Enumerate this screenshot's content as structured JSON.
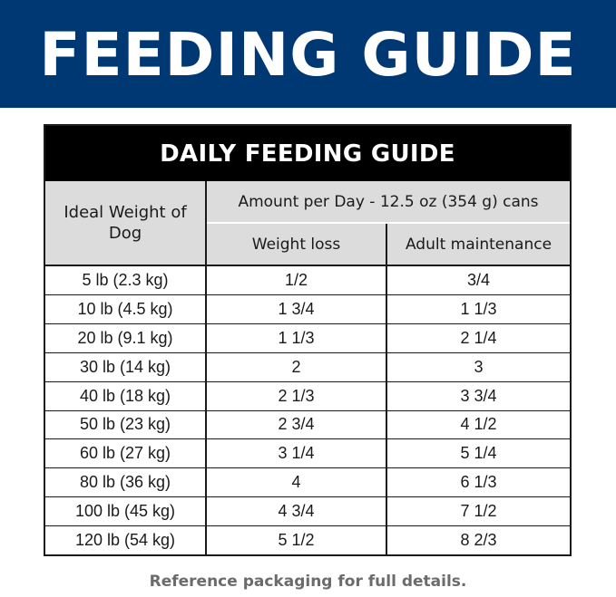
{
  "banner": {
    "title": "FEEDING GUIDE"
  },
  "table": {
    "title": "DAILY FEEDING GUIDE",
    "weight_header": "Ideal Weight of Dog",
    "amount_header": "Amount per Day - 12.5 oz (354 g) cans",
    "loss_header": "Weight loss",
    "maint_header": "Adult maintenance",
    "rows": [
      {
        "weight": "5 lb (2.3 kg)",
        "loss": "1/2",
        "maint": "3/4"
      },
      {
        "weight": "10 lb (4.5 kg)",
        "loss": "1 3/4",
        "maint": "1 1/3"
      },
      {
        "weight": "20 lb (9.1 kg)",
        "loss": "1 1/3",
        "maint": "2 1/4"
      },
      {
        "weight": "30 lb (14 kg)",
        "loss": "2",
        "maint": "3"
      },
      {
        "weight": "40 lb (18 kg)",
        "loss": "2 1/3",
        "maint": "3 3/4"
      },
      {
        "weight": "50 lb (23 kg)",
        "loss": "2 3/4",
        "maint": "4 1/2"
      },
      {
        "weight": "60 lb (27 kg)",
        "loss": "3 1/4",
        "maint": "5 1/4"
      },
      {
        "weight": "80 lb (36 kg)",
        "loss": "4",
        "maint": "6 1/3"
      },
      {
        "weight": "100 lb (45 kg)",
        "loss": "4 3/4",
        "maint": "7 1/2"
      },
      {
        "weight": "120 lb (54 kg)",
        "loss": "5 1/2",
        "maint": "8 2/3"
      }
    ]
  },
  "footnote": "Reference packaging for full details.",
  "colors": {
    "banner_background": "#003874",
    "table_header_background": "#000000",
    "column_header_background": "#dcdcdc",
    "footnote_text": "#6b6b6b"
  }
}
